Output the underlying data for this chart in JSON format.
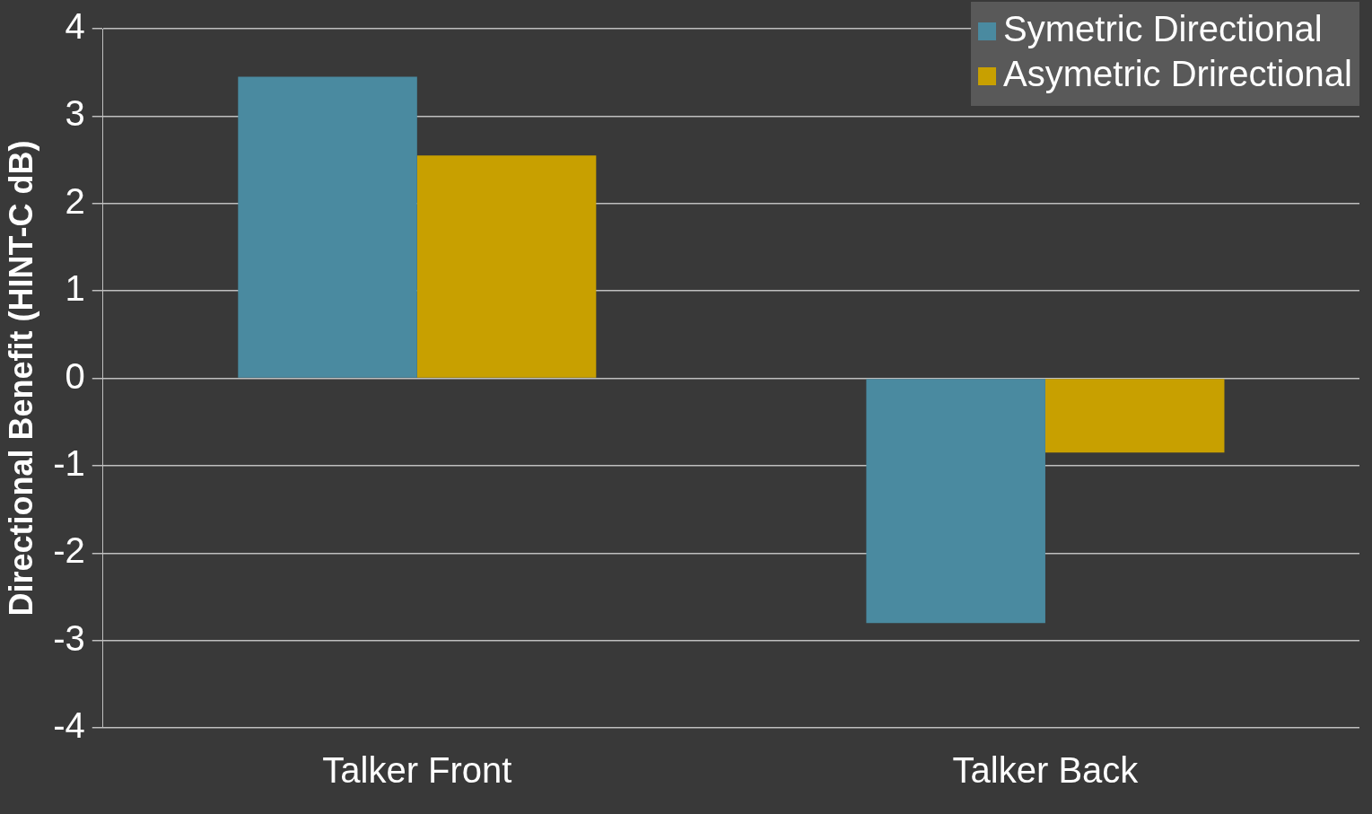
{
  "chart_data": {
    "type": "bar",
    "ylabel": "Directional Benefit (HINT-C dB)",
    "categories": [
      "Talker Front",
      "Talker Back"
    ],
    "series": [
      {
        "name": "Symetric Directional",
        "color": "#4a8aa0",
        "values": [
          3.45,
          -2.8
        ]
      },
      {
        "name": "Asymetric Drirectional",
        "color": "#c8a000",
        "values": [
          2.55,
          -0.85
        ]
      }
    ],
    "ylim": [
      -4,
      4
    ],
    "yticks": [
      -4,
      -3,
      -2,
      -1,
      0,
      1,
      2,
      3,
      4
    ],
    "grid": "y",
    "legend": "top right"
  }
}
